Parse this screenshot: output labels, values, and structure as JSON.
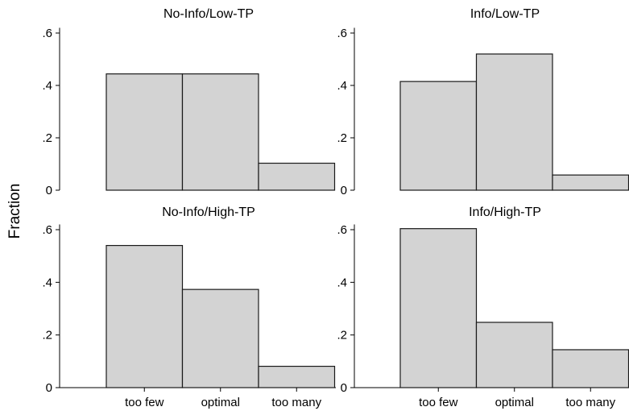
{
  "chart_data": {
    "type": "bar",
    "ylabel": "Fraction",
    "ylim": [
      0,
      0.62
    ],
    "yticks": [
      {
        "value": 0,
        "label": "0"
      },
      {
        "value": 0.2,
        "label": ".2"
      },
      {
        "value": 0.4,
        "label": ".4"
      },
      {
        "value": 0.6,
        "label": ".6"
      }
    ],
    "categories": [
      "too few",
      "optimal",
      "too many"
    ],
    "panels": [
      {
        "title": "No-Info/Low-TP",
        "values": [
          0.444,
          0.444,
          0.103
        ]
      },
      {
        "title": "Info/Low-TP",
        "values": [
          0.415,
          0.52,
          0.058
        ]
      },
      {
        "title": "No-Info/High-TP",
        "values": [
          0.54,
          0.373,
          0.081
        ]
      },
      {
        "title": "Info/High-TP",
        "values": [
          0.604,
          0.248,
          0.144
        ]
      }
    ],
    "grid": false,
    "legend": "none"
  }
}
